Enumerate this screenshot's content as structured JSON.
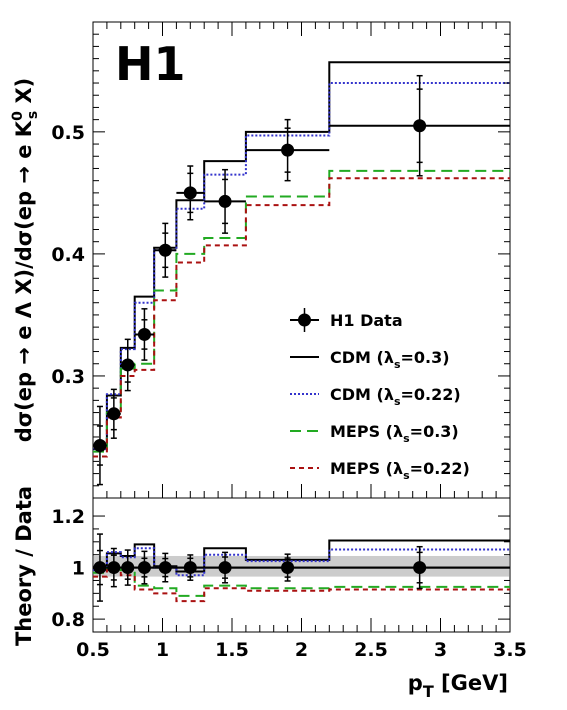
{
  "chart_data": [
    {
      "type": "line",
      "label": "H1",
      "ylabel": "dσ(ep → e Λ X)/dσ(ep → e K⁰ₛ X)",
      "xlim": [
        0.5,
        3.5
      ],
      "ylim": [
        0.2,
        0.59
      ],
      "y_ticks": [
        0.3,
        0.4,
        0.5
      ],
      "legend_placement": "right",
      "data_series": {
        "name": "H1 Data",
        "x": [
          0.55,
          0.65,
          0.75,
          0.87,
          1.02,
          1.2,
          1.45,
          1.9,
          2.85
        ],
        "xerr": [
          0.05,
          0.05,
          0.05,
          0.07,
          0.08,
          0.1,
          0.15,
          0.3,
          0.65
        ],
        "y": [
          0.243,
          0.269,
          0.309,
          0.334,
          0.403,
          0.45,
          0.443,
          0.485,
          0.505
        ],
        "stat_err": [
          0.016,
          0.013,
          0.014,
          0.012,
          0.014,
          0.016,
          0.018,
          0.018,
          0.03
        ],
        "tot_err": [
          0.032,
          0.02,
          0.021,
          0.021,
          0.022,
          0.022,
          0.026,
          0.025,
          0.041
        ]
      },
      "bin_edges": [
        0.5,
        0.6,
        0.7,
        0.8,
        0.94,
        1.1,
        1.3,
        1.6,
        2.2,
        3.5
      ],
      "models": [
        {
          "name": "CDM (λ_s=0.3)",
          "color": "#000000",
          "dash": "",
          "values": [
            0.243,
            0.284,
            0.323,
            0.365,
            0.405,
            0.444,
            0.476,
            0.5,
            0.557
          ]
        },
        {
          "name": "CDM (λ_s=0.22)",
          "color": "#3333cc",
          "dash": "2,2",
          "values": [
            0.24,
            0.285,
            0.322,
            0.36,
            0.403,
            0.437,
            0.465,
            0.497,
            0.54
          ]
        },
        {
          "name": "MEPS (λ_s=0.3)",
          "color": "#22aa22",
          "dash": "11,6",
          "values": [
            0.238,
            0.27,
            0.306,
            0.31,
            0.37,
            0.4,
            0.413,
            0.447,
            0.468
          ]
        },
        {
          "name": "MEPS (λ_s=0.22)",
          "color": "#aa1111",
          "dash": "5,4",
          "values": [
            0.234,
            0.266,
            0.3,
            0.305,
            0.362,
            0.393,
            0.407,
            0.44,
            0.462
          ]
        }
      ],
      "legend": {
        "entries": [
          {
            "label_main": "H1 Data",
            "label_sub": "",
            "label_tail": ""
          },
          {
            "label_main": "CDM (λ",
            "label_sub": "s",
            "label_tail": "=0.3)"
          },
          {
            "label_main": "CDM (λ",
            "label_sub": "s",
            "label_tail": "=0.22)"
          },
          {
            "label_main": "MEPS (λ",
            "label_sub": "s",
            "label_tail": "=0.3)"
          },
          {
            "label_main": "MEPS (λ",
            "label_sub": "s",
            "label_tail": "=0.22)"
          }
        ]
      },
      "ylabel_parts": {
        "main": "dσ(ep → e Λ X)/dσ(ep → e K",
        "sup": "0",
        "sub": "s",
        "tail": " X)"
      }
    },
    {
      "type": "line",
      "ylabel": "Theory / Data",
      "xlabel": "p_T [GeV]",
      "xlabel_parts": {
        "main": "p",
        "sub": "T",
        "tail": " [GeV]"
      },
      "xlim": [
        0.5,
        3.5
      ],
      "ylim": [
        0.75,
        1.27
      ],
      "x_ticks": [
        0.5,
        1,
        1.5,
        2,
        2.5,
        3,
        3.5
      ],
      "x_tick_labels": [
        "0.5",
        "1",
        "1.5",
        "2",
        "2.5",
        "3",
        "3.5"
      ],
      "y_ticks": [
        0.8,
        1,
        1.2
      ],
      "y_tick_labels": [
        "0.8",
        "1",
        "1.2"
      ],
      "band": {
        "ylow": 0.965,
        "yhigh": 1.045,
        "color": "#cccccc"
      },
      "reference_line": 1.0,
      "ratio_points": {
        "x": [
          0.55,
          0.65,
          0.75,
          0.87,
          1.02,
          1.2,
          1.45,
          1.9,
          2.85
        ],
        "xerr": [
          0.05,
          0.05,
          0.05,
          0.07,
          0.08,
          0.1,
          0.15,
          0.3,
          0.65
        ],
        "y": [
          1,
          1,
          1,
          1,
          1,
          1,
          1,
          1,
          1
        ],
        "stat_err": [
          0.066,
          0.048,
          0.045,
          0.036,
          0.035,
          0.036,
          0.041,
          0.037,
          0.059
        ],
        "tot_err": [
          0.13,
          0.074,
          0.068,
          0.063,
          0.055,
          0.049,
          0.059,
          0.052,
          0.081
        ]
      },
      "bin_edges": [
        0.5,
        0.6,
        0.7,
        0.8,
        0.94,
        1.1,
        1.3,
        1.6,
        2.2,
        3.5
      ],
      "models": [
        {
          "name": "CDM (λ_s=0.3)",
          "color": "#000000",
          "dash": "",
          "values": [
            1.0,
            1.055,
            1.045,
            1.09,
            1.005,
            0.985,
            1.075,
            1.03,
            1.105
          ]
        },
        {
          "name": "CDM (λ_s=0.22)",
          "color": "#3333cc",
          "dash": "2,2",
          "values": [
            0.99,
            1.06,
            1.04,
            1.075,
            1.0,
            0.97,
            1.05,
            1.025,
            1.07
          ]
        },
        {
          "name": "MEPS (λ_s=0.3)",
          "color": "#22aa22",
          "dash": "11,6",
          "values": [
            0.98,
            1.0,
            0.99,
            0.93,
            0.92,
            0.89,
            0.93,
            0.92,
            0.925
          ]
        },
        {
          "name": "MEPS (λ_s=0.22)",
          "color": "#aa1111",
          "dash": "5,4",
          "values": [
            0.965,
            0.99,
            0.97,
            0.915,
            0.9,
            0.87,
            0.92,
            0.91,
            0.915
          ]
        }
      ]
    }
  ]
}
